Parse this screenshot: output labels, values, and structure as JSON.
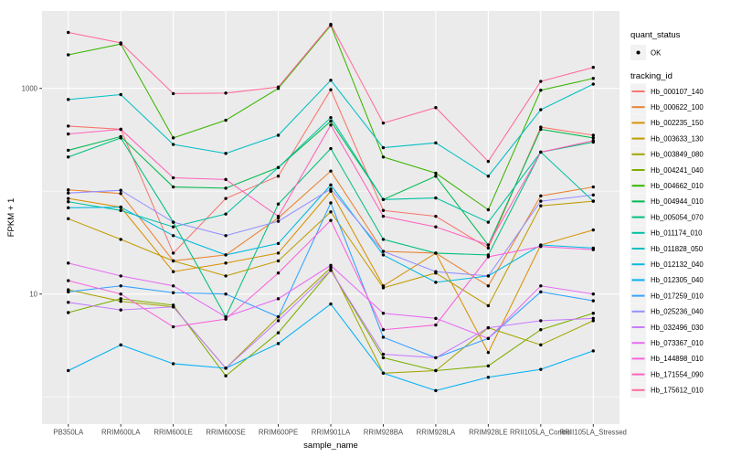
{
  "figure": {
    "y_axis_label": "FPKM + 1",
    "x_axis_label": "sample_name",
    "legend": {
      "quant_title": "quant_status",
      "quant_ok_label": "OK",
      "tracking_title": "tracking_id"
    }
  },
  "colors": {
    "panel_bg": "#EBEBEB",
    "gridline": "#FFFFFF",
    "legend_key_bg": "#F2F2F2",
    "tick_text": "#4D4D4D",
    "tick_mark": "#333333",
    "point": "#000000"
  },
  "chart_data": {
    "type": "line",
    "title": "",
    "xlabel": "sample_name",
    "ylabel": "FPKM + 1",
    "y_scale": "log10",
    "y_tick_values": [
      10,
      1000
    ],
    "y_minor_gridlines": [
      1,
      100
    ],
    "ylim": [
      0.55,
      5600
    ],
    "grid": true,
    "legend_position": "right",
    "quant_status": {
      "title": "quant_status",
      "items": [
        "OK"
      ],
      "marker": "black-point"
    },
    "categories": [
      "PB350LA",
      "RRIM600LA",
      "RRIM600LE",
      "RRIM600SE",
      "RRIM600PE",
      "RRIM901LA",
      "RRIM928BA",
      "RRIM928LA",
      "RRIM928LE",
      "RRII105LA_Control",
      "RRII105LA_Stressed"
    ],
    "series": [
      {
        "name": "Hb_000107_140",
        "color": "#F8766D",
        "values": [
          430,
          400,
          25,
          85,
          140,
          970,
          65,
          57,
          28,
          420,
          350
        ]
      },
      {
        "name": "Hb_000622_100",
        "color": "#EA8331",
        "values": [
          103,
          95,
          21,
          24,
          55,
          157,
          26,
          25,
          12,
          90,
          110
        ]
      },
      {
        "name": "Hb_002235_150",
        "color": "#D89000",
        "values": [
          85,
          70,
          16.5,
          20,
          25,
          100,
          12,
          25,
          2.7,
          30,
          42
        ]
      },
      {
        "name": "Hb_003633_130",
        "color": "#C09B00",
        "values": [
          54,
          34,
          21,
          15,
          21,
          63,
          11.5,
          16,
          7.7,
          72,
          80
        ]
      },
      {
        "name": "Hb_003849_080",
        "color": "#A3A500",
        "values": [
          11,
          8.5,
          7.5,
          1.9,
          6,
          18,
          1.7,
          1.8,
          4.7,
          3.2,
          5.5
        ]
      },
      {
        "name": "Hb_004241_040",
        "color": "#7CAE00",
        "values": [
          6.6,
          9,
          7.8,
          1.6,
          4.2,
          17,
          2.4,
          1.8,
          2.0,
          4.5,
          6.5
        ]
      },
      {
        "name": "Hb_004662_010",
        "color": "#39B600",
        "values": [
          2120,
          2700,
          330,
          490,
          1000,
          4100,
          215,
          150,
          66,
          960,
          1250
        ]
      },
      {
        "name": "Hb_004944_010",
        "color": "#00BB4E",
        "values": [
          250,
          340,
          110,
          107,
          170,
          480,
          83,
          140,
          30,
          400,
          330
        ]
      },
      {
        "name": "Hb_005054_070",
        "color": "#00BF7D",
        "values": [
          215,
          330,
          50,
          6,
          75,
          260,
          34,
          25,
          24,
          240,
          300
        ]
      },
      {
        "name": "Hb_011174_010",
        "color": "#00C1A3",
        "values": [
          79,
          65,
          45,
          60,
          170,
          520,
          83,
          86,
          50,
          240,
          80
        ]
      },
      {
        "name": "Hb_011828_050",
        "color": "#00BFC4",
        "values": [
          780,
          870,
          285,
          233,
          350,
          1200,
          265,
          295,
          140,
          620,
          1100
        ]
      },
      {
        "name": "Hb_012132_040",
        "color": "#00BAE0",
        "values": [
          69,
          70,
          37,
          24,
          31,
          115,
          24,
          13,
          15,
          30,
          28
        ]
      },
      {
        "name": "Hb_012305_040",
        "color": "#00B0F6",
        "values": [
          1.8,
          3.2,
          2.1,
          1.9,
          3.3,
          8,
          1.7,
          1.15,
          1.55,
          1.85,
          2.8
        ]
      },
      {
        "name": "Hb_017259_010",
        "color": "#35A2FF",
        "values": [
          10.5,
          12,
          10.3,
          10,
          6,
          77,
          3.8,
          2.4,
          3.7,
          10.5,
          8.6
        ]
      },
      {
        "name": "Hb_025236_040",
        "color": "#9590FF",
        "values": [
          96,
          102,
          50,
          37,
          51,
          105,
          26,
          16.5,
          15,
          80,
          92
        ]
      },
      {
        "name": "Hb_032496_030",
        "color": "#C77CFF",
        "values": [
          8.3,
          7,
          7.5,
          1.9,
          5.5,
          17,
          2.6,
          2.4,
          4.7,
          5.5,
          5.8
        ]
      },
      {
        "name": "Hb_073367_010",
        "color": "#E76BF3",
        "values": [
          20,
          15,
          12,
          6,
          9,
          19,
          6.5,
          5.8,
          3.7,
          12,
          10
        ]
      },
      {
        "name": "Hb_144898_010",
        "color": "#FA62DB",
        "values": [
          13.5,
          10,
          4.8,
          5.7,
          16,
          52,
          4.5,
          5,
          23,
          29,
          27
        ]
      },
      {
        "name": "Hb_171554_090",
        "color": "#FF62BC",
        "values": [
          360,
          400,
          135,
          130,
          57,
          440,
          57,
          45,
          30,
          240,
          310
        ]
      },
      {
        "name": "Hb_175612_010",
        "color": "#FF6A98",
        "values": [
          3500,
          2770,
          890,
          900,
          1030,
          4200,
          460,
          650,
          195,
          1170,
          1600
        ]
      }
    ]
  }
}
